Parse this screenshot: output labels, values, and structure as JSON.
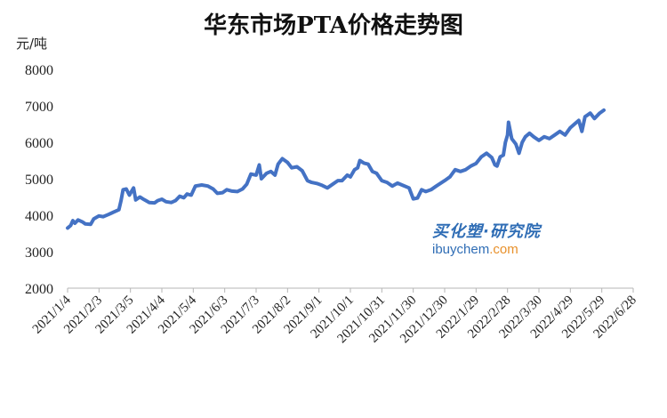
{
  "chart_data": {
    "type": "line",
    "title": "华东市场PTA价格走势图",
    "ylabel": "元/吨",
    "xlabel": "",
    "ylim": [
      2000,
      8000
    ],
    "yticks": [
      2000,
      3000,
      4000,
      5000,
      6000,
      7000,
      8000
    ],
    "xlim": [
      "2021-01-04",
      "2022-06-28"
    ],
    "xtick_labels": [
      "2021/1/4",
      "2021/2/3",
      "2021/3/5",
      "2021/4/4",
      "2021/5/4",
      "2021/6/3",
      "2021/7/3",
      "2021/8/2",
      "2021/9/1",
      "2021/10/1",
      "2021/10/31",
      "2021/11/30",
      "2021/12/30",
      "2022/1/29",
      "2022/2/28",
      "2022/3/30",
      "2022/4/29",
      "2022/5/29",
      "2022/6/28"
    ],
    "xtick_dates": [
      "2021-01-04",
      "2021-02-03",
      "2021-03-05",
      "2021-04-04",
      "2021-05-04",
      "2021-06-03",
      "2021-07-03",
      "2021-08-02",
      "2021-09-01",
      "2021-10-01",
      "2021-10-31",
      "2021-11-30",
      "2021-12-30",
      "2022-01-29",
      "2022-02-28",
      "2022-03-30",
      "2022-04-29",
      "2022-05-29",
      "2022-06-28"
    ],
    "grid": false,
    "legend": "none",
    "line_color": "#4472c4",
    "series": [
      {
        "points": [
          [
            "2021-01-04",
            3650
          ],
          [
            "2021-01-07",
            3720
          ],
          [
            "2021-01-09",
            3850
          ],
          [
            "2021-01-11",
            3780
          ],
          [
            "2021-01-14",
            3870
          ],
          [
            "2021-01-18",
            3820
          ],
          [
            "2021-01-21",
            3760
          ],
          [
            "2021-01-26",
            3750
          ],
          [
            "2021-01-29",
            3900
          ],
          [
            "2021-02-03",
            3980
          ],
          [
            "2021-02-07",
            3960
          ],
          [
            "2021-02-12",
            4020
          ],
          [
            "2021-02-18",
            4100
          ],
          [
            "2021-02-22",
            4150
          ],
          [
            "2021-02-24",
            4400
          ],
          [
            "2021-02-26",
            4700
          ],
          [
            "2021-03-01",
            4720
          ],
          [
            "2021-03-04",
            4550
          ],
          [
            "2021-03-06",
            4650
          ],
          [
            "2021-03-08",
            4750
          ],
          [
            "2021-03-10",
            4420
          ],
          [
            "2021-03-14",
            4500
          ],
          [
            "2021-03-18",
            4430
          ],
          [
            "2021-03-23",
            4350
          ],
          [
            "2021-03-28",
            4340
          ],
          [
            "2021-03-31",
            4400
          ],
          [
            "2021-04-04",
            4440
          ],
          [
            "2021-04-08",
            4370
          ],
          [
            "2021-04-13",
            4350
          ],
          [
            "2021-04-17",
            4400
          ],
          [
            "2021-04-21",
            4520
          ],
          [
            "2021-04-25",
            4480
          ],
          [
            "2021-04-28",
            4580
          ],
          [
            "2021-05-02",
            4550
          ],
          [
            "2021-05-06",
            4800
          ],
          [
            "2021-05-12",
            4830
          ],
          [
            "2021-05-18",
            4800
          ],
          [
            "2021-05-23",
            4720
          ],
          [
            "2021-05-27",
            4600
          ],
          [
            "2021-06-01",
            4620
          ],
          [
            "2021-06-05",
            4700
          ],
          [
            "2021-06-10",
            4660
          ],
          [
            "2021-06-15",
            4650
          ],
          [
            "2021-06-20",
            4720
          ],
          [
            "2021-06-24",
            4850
          ],
          [
            "2021-06-28",
            5130
          ],
          [
            "2021-07-03",
            5100
          ],
          [
            "2021-07-06",
            5380
          ],
          [
            "2021-07-08",
            5000
          ],
          [
            "2021-07-13",
            5150
          ],
          [
            "2021-07-17",
            5200
          ],
          [
            "2021-07-21",
            5100
          ],
          [
            "2021-07-24",
            5400
          ],
          [
            "2021-07-28",
            5550
          ],
          [
            "2021-08-02",
            5450
          ],
          [
            "2021-08-06",
            5300
          ],
          [
            "2021-08-11",
            5330
          ],
          [
            "2021-08-16",
            5220
          ],
          [
            "2021-08-21",
            4950
          ],
          [
            "2021-08-25",
            4900
          ],
          [
            "2021-08-30",
            4870
          ],
          [
            "2021-09-04",
            4820
          ],
          [
            "2021-09-09",
            4750
          ],
          [
            "2021-09-14",
            4850
          ],
          [
            "2021-09-19",
            4950
          ],
          [
            "2021-09-23",
            4950
          ],
          [
            "2021-09-28",
            5100
          ],
          [
            "2021-10-01",
            5050
          ],
          [
            "2021-10-05",
            5250
          ],
          [
            "2021-10-08",
            5300
          ],
          [
            "2021-10-10",
            5500
          ],
          [
            "2021-10-14",
            5430
          ],
          [
            "2021-10-18",
            5400
          ],
          [
            "2021-10-22",
            5200
          ],
          [
            "2021-10-26",
            5150
          ],
          [
            "2021-10-31",
            4950
          ],
          [
            "2021-11-05",
            4900
          ],
          [
            "2021-11-10",
            4800
          ],
          [
            "2021-11-15",
            4880
          ],
          [
            "2021-11-20",
            4820
          ],
          [
            "2021-11-26",
            4750
          ],
          [
            "2021-11-30",
            4450
          ],
          [
            "2021-12-04",
            4470
          ],
          [
            "2021-12-08",
            4700
          ],
          [
            "2021-12-12",
            4650
          ],
          [
            "2021-12-17",
            4700
          ],
          [
            "2021-12-22",
            4800
          ],
          [
            "2021-12-30",
            4950
          ],
          [
            "2022-01-04",
            5050
          ],
          [
            "2022-01-09",
            5250
          ],
          [
            "2022-01-14",
            5200
          ],
          [
            "2022-01-19",
            5250
          ],
          [
            "2022-01-24",
            5350
          ],
          [
            "2022-01-29",
            5420
          ],
          [
            "2022-02-03",
            5600
          ],
          [
            "2022-02-08",
            5700
          ],
          [
            "2022-02-13",
            5580
          ],
          [
            "2022-02-16",
            5380
          ],
          [
            "2022-02-18",
            5350
          ],
          [
            "2022-02-21",
            5600
          ],
          [
            "2022-02-24",
            5650
          ],
          [
            "2022-02-26",
            6000
          ],
          [
            "2022-02-28",
            6200
          ],
          [
            "2022-03-01",
            6550
          ],
          [
            "2022-03-04",
            6100
          ],
          [
            "2022-03-08",
            5950
          ],
          [
            "2022-03-11",
            5700
          ],
          [
            "2022-03-14",
            6000
          ],
          [
            "2022-03-17",
            6150
          ],
          [
            "2022-03-21",
            6250
          ],
          [
            "2022-03-25",
            6150
          ],
          [
            "2022-03-30",
            6050
          ],
          [
            "2022-04-04",
            6150
          ],
          [
            "2022-04-09",
            6100
          ],
          [
            "2022-04-14",
            6200
          ],
          [
            "2022-04-19",
            6300
          ],
          [
            "2022-04-24",
            6200
          ],
          [
            "2022-04-29",
            6400
          ],
          [
            "2022-05-03",
            6500
          ],
          [
            "2022-05-07",
            6600
          ],
          [
            "2022-05-10",
            6300
          ],
          [
            "2022-05-13",
            6700
          ],
          [
            "2022-05-18",
            6800
          ],
          [
            "2022-05-22",
            6650
          ],
          [
            "2022-05-27",
            6800
          ],
          [
            "2022-05-31",
            6880
          ]
        ]
      }
    ]
  },
  "watermark": {
    "brand_zh": "买化塑·研究院",
    "site_main": "ibuychem",
    "site_tld": ".com"
  }
}
